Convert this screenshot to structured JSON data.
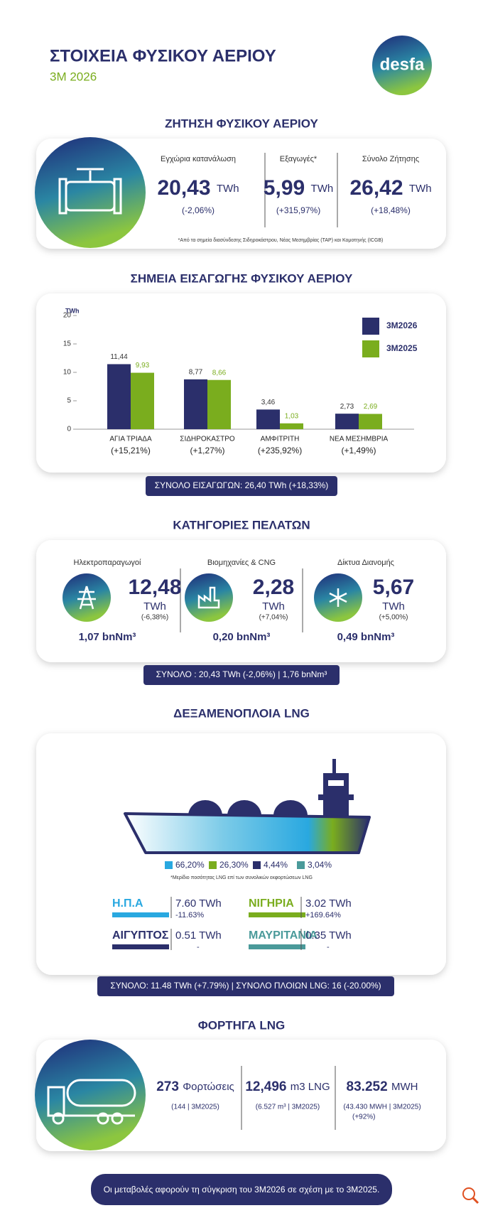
{
  "header": {
    "title": "ΣΤΟΙΧΕΙΑ ΦΥΣΙΚΟΥ ΑΕΡΙΟΥ",
    "subtitle": "3M 2026",
    "logo": "desfa"
  },
  "demand": {
    "title": "ΖΗΤΗΣΗ ΦΥΣΙΚΟΥ ΑΕΡΙΟΥ",
    "columns": [
      {
        "label": "Εγχώρια κατανάλωση",
        "value": "20,43",
        "unit": "TWh",
        "change": "(-2,06%)"
      },
      {
        "label": "Εξαγωγές*",
        "value": "5,99",
        "unit": "TWh",
        "change": "(+315,97%)"
      },
      {
        "label": "Σύνολο Ζήτησης",
        "value": "26,42",
        "unit": "TWh",
        "change": "(+18,48%)"
      }
    ],
    "footnote": "*Από τα σημεία διασύνδεσης Σιδηροκάστρου, Νέας Μεσημβρίας (TAP) και Κομοτηνής (ICGB)"
  },
  "chart_data": {
    "type": "bar",
    "title": "ΣΗΜΕΙΑ ΕΙΣΑΓΩΓΗΣ ΦΥΣΙΚΟΥ ΑΕΡΙΟΥ",
    "y_label": "TWh",
    "categories": [
      "ΑΓΙΑ ΤΡΙΑΔΑ",
      "ΣΙΔΗΡΟΚΑΣΤΡΟ",
      "ΑΜΦΙΤΡΙΤΗ",
      "ΝΕΑ ΜΕΣΗΜΒΡΙΑ"
    ],
    "category_notes": [
      "(+15,21%)",
      "(+1,27%)",
      "(+235,92%)",
      "(+1,49%)"
    ],
    "series": [
      {
        "name": "3M2026",
        "color": "#2b2f6b",
        "values": [
          11.44,
          8.77,
          3.46,
          2.73
        ],
        "value_labels": [
          "11,44",
          "8,77",
          "3,46",
          "2,73"
        ]
      },
      {
        "name": "3M2025",
        "color": "#7aad1e",
        "values": [
          9.93,
          8.66,
          1.03,
          2.69
        ],
        "value_labels": [
          "9,93",
          "8,66",
          "1,03",
          "2,69"
        ]
      }
    ],
    "ylim": [
      0,
      20
    ],
    "yticks": [
      0,
      5,
      10,
      15,
      20
    ],
    "total": "ΣΥΝΟΛΟ ΕΙΣΑΓΩΓΩΝ: 26,40 TWh  (+18,33%)"
  },
  "customers": {
    "title": "ΚΑΤΗΓΟΡΙΕΣ ΠΕΛΑΤΩΝ",
    "columns": [
      {
        "label": "Ηλεκτροπαραγωγοί",
        "value": "12,48",
        "unit": "TWh",
        "change": "(-6,38%)",
        "volume": "1,07 bnNm³"
      },
      {
        "label": "Βιομηχανίες & CNG",
        "value": "2,28",
        "unit": "TWh",
        "change": "(+7,04%)",
        "volume": "0,20 bnNm³"
      },
      {
        "label": "Δίκτυα Διανομής",
        "value": "5,67",
        "unit": "TWh",
        "change": "(+5,00%)",
        "volume": "0,49 bnNm³"
      }
    ],
    "total": "ΣΥΝΟΛΟ : 20,43 TWh (-2,06%) | 1,76 bnNm³"
  },
  "lng": {
    "title": "ΔΕΞΑΜΕΝΟΠΛΟΙΑ LNG",
    "shares": [
      {
        "label": "66,20%",
        "color": "#29a8e0"
      },
      {
        "label": "26,30%",
        "color": "#7aad1e"
      },
      {
        "label": "4,44%",
        "color": "#2b2f6b"
      },
      {
        "label": "3,04%",
        "color": "#4a9a9a"
      }
    ],
    "footnote": "*Μερίδιο ποσότητας LNG επί των συνολικών εκφορτώσεων LNG",
    "countries": [
      {
        "name": "Η.Π.Α",
        "value": "7.60 TWh",
        "change": "-11.63%",
        "color": "#29a8e0"
      },
      {
        "name": "ΝΙΓΗΡΙΑ",
        "value": "3.02 TWh",
        "change": "+169.64%",
        "color": "#7aad1e"
      },
      {
        "name": "ΑΙΓΥΠΤΟΣ",
        "value": "0.51 TWh",
        "change": "-",
        "color": "#2b2f6b"
      },
      {
        "name": "ΜΑΥΡΙΤΑΝΙΑ",
        "value": "0.35 TWh",
        "change": "-",
        "color": "#4a9a9a"
      }
    ],
    "total": "ΣΥΝΟΛΟ: 11.48 TWh (+7.79%) | ΣΥΝΟΛΟ ΠΛΟΙΩΝ LNG: 16 (-20.00%)"
  },
  "trucks": {
    "title": "ΦΟΡΤΗΓΑ LNG",
    "columns": [
      {
        "value": "273",
        "unit": "Φορτώσεις",
        "note": "(144 | 3M2025)"
      },
      {
        "value": "12,496",
        "unit": "m3 LNG",
        "note": "(6.527 m³ | 3M2025)"
      },
      {
        "value": "83.252",
        "unit": "MWH",
        "note": "(43.430 MWH | 3M2025)",
        "note2": "(+92%)"
      }
    ]
  },
  "footer": "Οι μεταβολές αφορούν τη σύγκριση του 3M2026 σε σχέση με το 3M2025."
}
